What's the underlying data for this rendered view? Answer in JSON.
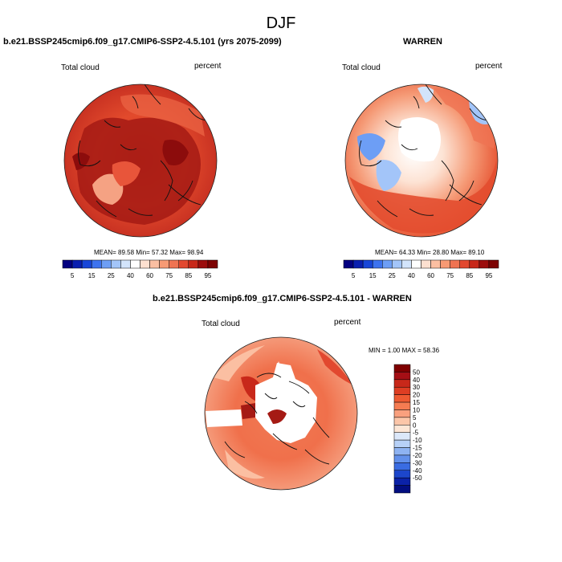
{
  "figure": {
    "season": "DJF"
  },
  "panels": [
    {
      "title": "b.e21.BSSP245cmip6.f09_g17.CMIP6-SSP2-4.5.101 (yrs 2075-2099)",
      "variable": "Total cloud",
      "units": "percent",
      "stats": {
        "text": "MEAN=  89.58  Min=  57.32  Max=  98.94",
        "mean": 89.58,
        "min": 57.32,
        "max": 98.94
      },
      "field_description_levels": {
        "dominant": 90,
        "secondary": 85,
        "low_patch": 75
      }
    },
    {
      "title": "WARREN",
      "variable": "Total cloud",
      "units": "percent",
      "stats": {
        "text": "MEAN=  64.33  Min=  28.80  Max=  89.10",
        "mean": 64.33,
        "min": 28.8,
        "max": 89.1
      },
      "field_description_levels": {
        "dominant": 75,
        "secondary": 60,
        "low_patch": 30
      }
    },
    {
      "title": "b.e21.BSSP245cmip6.f09_g17.CMIP6-SSP2-4.5.101 - WARREN",
      "variable": "Total cloud",
      "units": "percent",
      "stats": {
        "text": "MIN =   1.00 MAX =  58.36",
        "min": 1.0,
        "max": 58.36
      }
    }
  ],
  "colorbar_abs": {
    "tick_labels": [
      "5",
      "15",
      "25",
      "40",
      "60",
      "75",
      "85",
      "95"
    ],
    "colors": [
      "#030080",
      "#0a1fb0",
      "#1846d8",
      "#3d73ef",
      "#6d9ef5",
      "#a3c5f9",
      "#d2e4fb",
      "#ffffff",
      "#fde0d0",
      "#fbbfa2",
      "#f79a74",
      "#ef7352",
      "#e2482f",
      "#c8281a",
      "#9c0d0d",
      "#7d0202"
    ]
  },
  "colorbar_diff": {
    "tick_labels": [
      "50",
      "40",
      "30",
      "20",
      "15",
      "10",
      "5",
      "0",
      "-5",
      "-10",
      "-15",
      "-20",
      "-30",
      "-40",
      "-50"
    ],
    "colors": [
      "#7f0000",
      "#a50f15",
      "#c8281a",
      "#de3e23",
      "#ee5a32",
      "#f57c52",
      "#f9a07e",
      "#fcc6a9",
      "#fde6d6",
      "#dce8fa",
      "#b7d1f7",
      "#8eb3f2",
      "#6290eb",
      "#3a6ce2",
      "#1c46cc",
      "#0b22a8",
      "#020e80"
    ]
  }
}
